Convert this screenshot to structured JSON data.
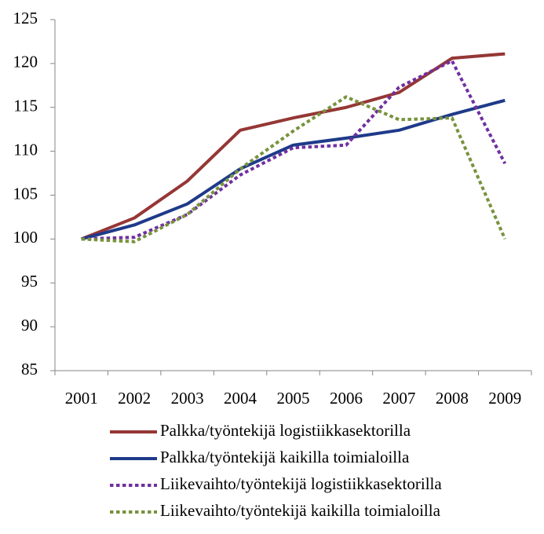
{
  "chart_data": {
    "type": "line",
    "categories": [
      "2001",
      "2002",
      "2003",
      "2004",
      "2005",
      "2006",
      "2007",
      "2008",
      "2009"
    ],
    "series": [
      {
        "name": "Palkka/työntekijä logistiikkasektorilla",
        "color": "#953735",
        "dash": false,
        "values": [
          100,
          102.4,
          106.6,
          112.4,
          113.8,
          115.0,
          116.7,
          120.6,
          121.1
        ]
      },
      {
        "name": "Palkka/työntekijä kaikilla toimialoilla",
        "color": "#1f3a8a",
        "dash": false,
        "values": [
          100,
          101.6,
          104.0,
          108.0,
          110.7,
          111.5,
          112.4,
          114.2,
          115.8
        ]
      },
      {
        "name": "Liikevaihto/työntekijä logistiikkasektorilla",
        "color": "#7030a0",
        "dash": true,
        "values": [
          100,
          100.2,
          102.8,
          107.3,
          110.4,
          110.7,
          117.3,
          120.3,
          108.6
        ]
      },
      {
        "name": "Liikevaihto/työntekijä kaikilla toimialoilla",
        "color": "#77933c",
        "dash": true,
        "values": [
          100,
          99.7,
          102.8,
          108.0,
          112.3,
          116.2,
          113.6,
          113.8,
          100.0
        ]
      }
    ],
    "ylim": [
      85,
      125
    ],
    "yticks": [
      85,
      90,
      95,
      100,
      105,
      110,
      115,
      120,
      125
    ],
    "grid": false,
    "legend": "bottom"
  }
}
